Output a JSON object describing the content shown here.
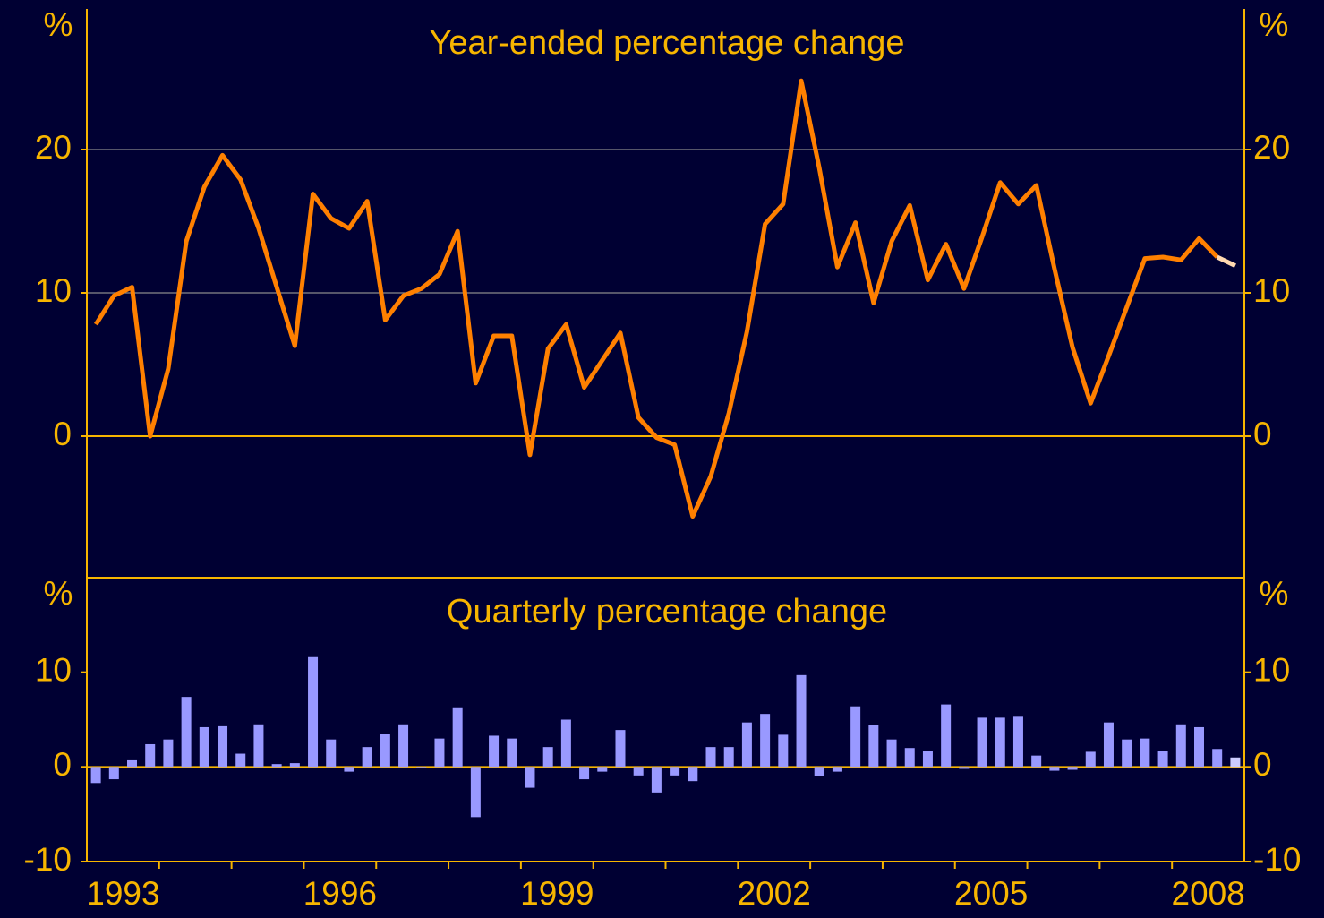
{
  "chart_data": [
    {
      "type": "line",
      "title": "Year-ended percentage change",
      "ylabel": "%",
      "x": [
        1993.125,
        1993.375,
        1993.625,
        1993.875,
        1994.125,
        1994.375,
        1994.625,
        1994.875,
        1995.125,
        1995.375,
        1995.625,
        1995.875,
        1996.125,
        1996.375,
        1996.625,
        1996.875,
        1997.125,
        1997.375,
        1997.625,
        1997.875,
        1998.125,
        1998.375,
        1998.625,
        1998.875,
        1999.125,
        1999.375,
        1999.625,
        1999.875,
        2000.125,
        2000.375,
        2000.625,
        2000.875,
        2001.125,
        2001.375,
        2001.625,
        2001.875,
        2002.125,
        2002.375,
        2002.625,
        2002.875,
        2003.125,
        2003.375,
        2003.625,
        2003.875,
        2004.125,
        2004.375,
        2004.625,
        2004.875,
        2005.125,
        2005.375,
        2005.625,
        2005.875,
        2006.125,
        2006.375,
        2006.625,
        2006.875,
        2007.125,
        2007.375,
        2007.625,
        2007.875,
        2008.125,
        2008.375,
        2008.625,
        2008.875
      ],
      "series": [
        {
          "color": "#ff8000",
          "values": [
            7.8,
            9.8,
            10.4,
            0,
            4.7,
            13.6,
            17.4,
            19.6,
            17.9,
            14.5,
            10.4,
            6.3,
            16.9,
            15.2,
            14.5,
            16.4,
            8.1,
            9.8,
            10.3,
            11.3,
            14.3,
            3.7,
            7.0,
            7.0,
            -1.3,
            6.1,
            7.8,
            3.4,
            5.3,
            7.2,
            1.3,
            -0.1,
            -0.6,
            -5.6,
            -2.8,
            1.6,
            7.3,
            14.8,
            16.2,
            24.8,
            18.7,
            11.8,
            14.9,
            9.3,
            13.6,
            16.1,
            10.9,
            13.4,
            10.3,
            13.9,
            17.7,
            16.2,
            17.5,
            11.7,
            6.2,
            2.3,
            5.6,
            9.0,
            12.4,
            12.5,
            12.3,
            13.8,
            12.5,
            null
          ]
        },
        {
          "color": "#ffd9b0",
          "values": [
            null,
            null,
            null,
            null,
            null,
            null,
            null,
            null,
            null,
            null,
            null,
            null,
            null,
            null,
            null,
            null,
            null,
            null,
            null,
            null,
            null,
            null,
            null,
            null,
            null,
            null,
            null,
            null,
            null,
            null,
            null,
            null,
            null,
            null,
            null,
            null,
            null,
            null,
            null,
            null,
            null,
            null,
            null,
            null,
            null,
            null,
            null,
            null,
            null,
            null,
            null,
            null,
            null,
            null,
            null,
            null,
            null,
            null,
            null,
            null,
            null,
            null,
            12.5,
            11.9
          ]
        }
      ],
      "xlim": [
        1993,
        2009
      ],
      "ylim": [
        -10,
        30
      ],
      "yticks": [
        0,
        10,
        20
      ],
      "grid": true
    },
    {
      "type": "bar",
      "title": "Quarterly percentage change",
      "ylabel": "%",
      "x": [
        1993.125,
        1993.375,
        1993.625,
        1993.875,
        1994.125,
        1994.375,
        1994.625,
        1994.875,
        1995.125,
        1995.375,
        1995.625,
        1995.875,
        1996.125,
        1996.375,
        1996.625,
        1996.875,
        1997.125,
        1997.375,
        1997.625,
        1997.875,
        1998.125,
        1998.375,
        1998.625,
        1998.875,
        1999.125,
        1999.375,
        1999.625,
        1999.875,
        2000.125,
        2000.375,
        2000.625,
        2000.875,
        2001.125,
        2001.375,
        2001.625,
        2001.875,
        2002.125,
        2002.375,
        2002.625,
        2002.875,
        2003.125,
        2003.375,
        2003.625,
        2003.875,
        2004.125,
        2004.375,
        2004.625,
        2004.875,
        2005.125,
        2005.375,
        2005.625,
        2005.875,
        2006.125,
        2006.375,
        2006.625,
        2006.875,
        2007.125,
        2007.375,
        2007.625,
        2007.875,
        2008.125,
        2008.375,
        2008.625,
        2008.875
      ],
      "series": [
        {
          "color": "#9999ff",
          "values": [
            -1.7,
            -1.3,
            0.7,
            2.4,
            2.9,
            7.4,
            4.2,
            4.3,
            1.4,
            4.5,
            0.3,
            0.4,
            11.6,
            2.9,
            -0.5,
            2.1,
            3.5,
            4.5,
            -0.1,
            3.0,
            6.3,
            -5.3,
            3.3,
            3.0,
            -2.2,
            2.1,
            5.0,
            -1.3,
            -0.5,
            3.9,
            -0.9,
            -2.7,
            -0.9,
            -1.5,
            2.1,
            2.1,
            4.7,
            5.6,
            3.4,
            9.7,
            -1.0,
            -0.5,
            6.4,
            4.4,
            2.9,
            2.0,
            1.7,
            6.6,
            -0.2,
            5.2,
            5.2,
            5.3,
            1.2,
            -0.4,
            -0.3,
            1.6,
            4.7,
            2.9,
            3.0,
            1.7,
            4.5,
            4.2,
            1.9,
            null
          ]
        },
        {
          "color": "#ccccff",
          "values": [
            null,
            null,
            null,
            null,
            null,
            null,
            null,
            null,
            null,
            null,
            null,
            null,
            null,
            null,
            null,
            null,
            null,
            null,
            null,
            null,
            null,
            null,
            null,
            null,
            null,
            null,
            null,
            null,
            null,
            null,
            null,
            null,
            null,
            null,
            null,
            null,
            null,
            null,
            null,
            null,
            null,
            null,
            null,
            null,
            null,
            null,
            null,
            null,
            null,
            null,
            null,
            null,
            null,
            null,
            null,
            null,
            null,
            null,
            null,
            null,
            null,
            null,
            null,
            1.0
          ]
        }
      ],
      "xlim": [
        1993,
        2009
      ],
      "ylim": [
        -10,
        20
      ],
      "yticks": [
        -10,
        0,
        10
      ],
      "grid": false,
      "xticks": [
        1994,
        1995,
        1996,
        1997,
        1998,
        1999,
        2000,
        2001,
        2002,
        2003,
        2004,
        2005,
        2006,
        2007,
        2008
      ],
      "xtick_labels": [
        {
          "value": 1993.5,
          "label": "1993"
        },
        {
          "value": 1996.5,
          "label": "1996"
        },
        {
          "value": 1999.5,
          "label": "1999"
        },
        {
          "value": 2002.5,
          "label": "2002"
        },
        {
          "value": 2005.5,
          "label": "2005"
        },
        {
          "value": 2008.5,
          "label": "2008"
        }
      ]
    }
  ]
}
